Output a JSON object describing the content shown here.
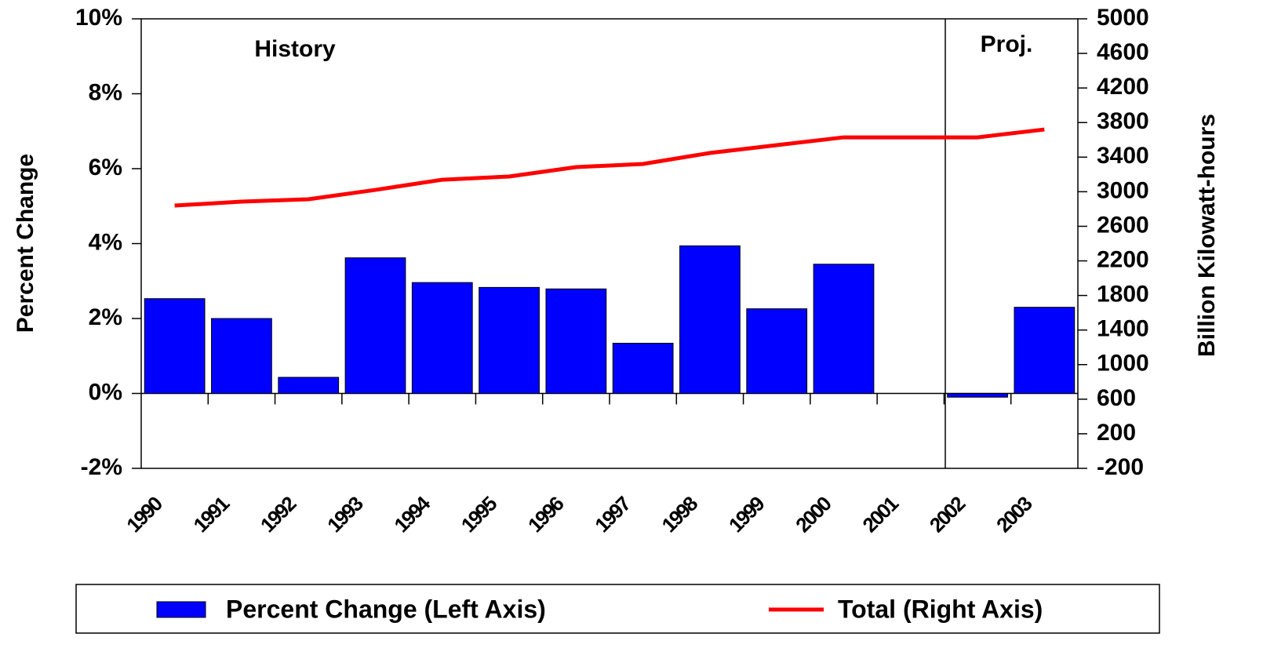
{
  "chart_data": {
    "type": "bar",
    "categories": [
      "1990",
      "1991",
      "1992",
      "1993",
      "1994",
      "1995",
      "1996",
      "1997",
      "1998",
      "1999",
      "2000",
      "2001",
      "2002",
      "2003"
    ],
    "series": [
      {
        "name": "Percent Change (Left Axis)",
        "type": "bar",
        "color": "#0000ff",
        "values": [
          2.53,
          2.0,
          0.43,
          3.62,
          2.96,
          2.83,
          2.79,
          1.34,
          3.94,
          2.26,
          3.45,
          null,
          -0.1,
          2.3
        ]
      },
      {
        "name": "Total (Right Axis)",
        "type": "line",
        "axis": "y2",
        "color": "#ff0000",
        "values": [
          2840,
          2885,
          2913,
          3021,
          3139,
          3176,
          3285,
          3321,
          3448,
          3539,
          3629,
          3629,
          3629,
          3720
        ]
      }
    ],
    "ylabel": "Percent Change",
    "y2label": "Billion Kilowatt-hours",
    "ylim": [
      -2,
      10
    ],
    "yticks": [
      {
        "value": -2,
        "label": "-2%"
      },
      {
        "value": 0,
        "label": "0%"
      },
      {
        "value": 2,
        "label": "2%"
      },
      {
        "value": 4,
        "label": "4%"
      },
      {
        "value": 6,
        "label": "6%"
      },
      {
        "value": 8,
        "label": "8%"
      },
      {
        "value": 10,
        "label": "10%"
      }
    ],
    "y2lim": [
      -200,
      5000
    ],
    "y2ticks": [
      -200,
      200,
      600,
      1000,
      1400,
      1800,
      2200,
      2600,
      3000,
      3400,
      3800,
      4200,
      4600,
      5000
    ],
    "annotations": [
      "History",
      "Proj."
    ],
    "legend": "bottom"
  }
}
